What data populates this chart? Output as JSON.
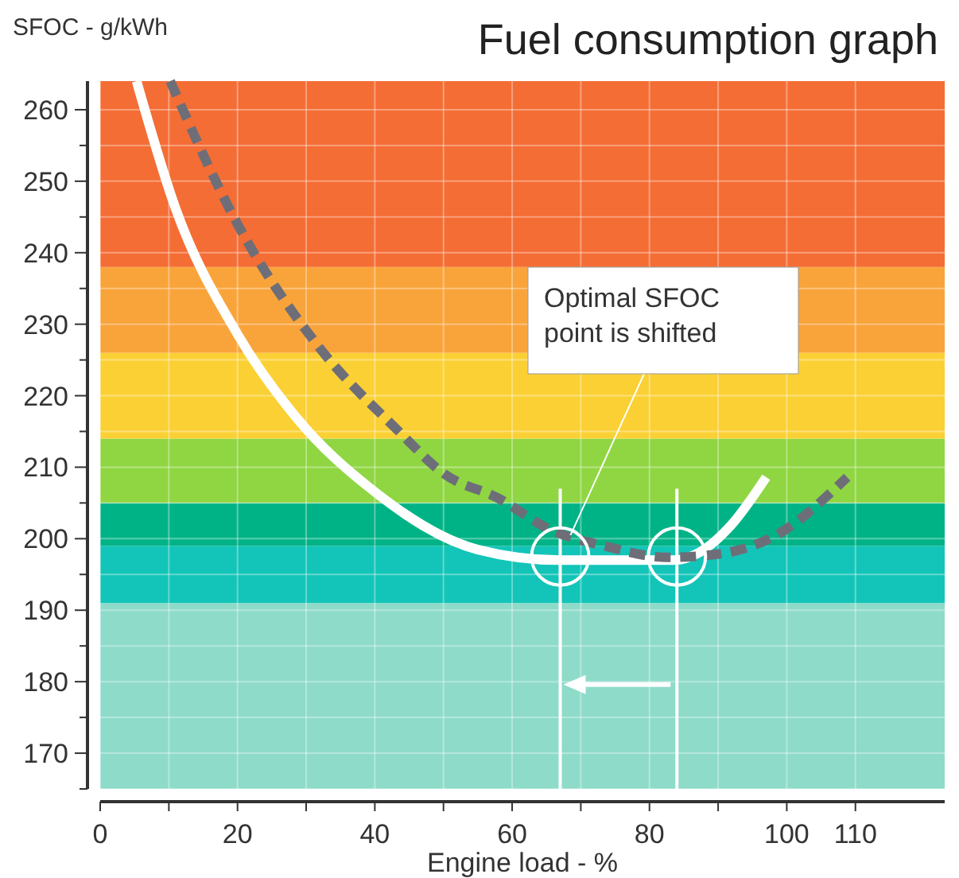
{
  "chart_data": {
    "type": "line",
    "title": "Fuel consumption graph",
    "xlabel": "Engine load - %",
    "ylabel": "SFOC - g/kWh",
    "xlim": [
      0,
      123
    ],
    "ylim": [
      165,
      264
    ],
    "xticks": [
      0,
      {
        "value": 10,
        "label": null
      },
      20,
      {
        "value": 30,
        "label": null
      },
      40,
      {
        "value": 50,
        "label": null
      },
      60,
      {
        "value": 70,
        "label": null
      },
      80,
      {
        "value": 90,
        "label": null
      },
      100,
      110
    ],
    "yticks": [
      {
        "value": 165,
        "label": null
      },
      170,
      {
        "value": 175,
        "label": null
      },
      180,
      {
        "value": 185,
        "label": null
      },
      190,
      {
        "value": 195,
        "label": null
      },
      200,
      {
        "value": 205,
        "label": null
      },
      210,
      {
        "value": 215,
        "label": null
      },
      220,
      {
        "value": 225,
        "label": null
      },
      230,
      {
        "value": 235,
        "label": null
      },
      240,
      {
        "value": 245,
        "label": null
      },
      250,
      {
        "value": 255,
        "label": null
      },
      260
    ],
    "grid": true,
    "bands": [
      {
        "axis": "y",
        "from": 165,
        "to": 191,
        "color": "#8edbc9"
      },
      {
        "axis": "y",
        "from": 191,
        "to": 199,
        "color": "#13c4b8"
      },
      {
        "axis": "y",
        "from": 199,
        "to": 205,
        "color": "#00b386"
      },
      {
        "axis": "y",
        "from": 205,
        "to": 214,
        "color": "#8fd642"
      },
      {
        "axis": "y",
        "from": 214,
        "to": 226,
        "color": "#fbd034"
      },
      {
        "axis": "y",
        "from": 226,
        "to": 238,
        "color": "#f9a43a"
      },
      {
        "axis": "y",
        "from": 238,
        "to": 264,
        "color": "#f46d35"
      }
    ],
    "series": [
      {
        "color": "#ffffff",
        "line_style": "solid",
        "x": [
          5.3,
          10.9,
          20,
          28.7,
          39.4,
          54.9,
          66.9,
          73.4,
          83.6,
          87.3,
          91.9,
          97
        ],
        "values": [
          264,
          246.4,
          228.6,
          216.8,
          207,
          198.5,
          197,
          197,
          197,
          198.1,
          201.9,
          208.6
        ]
      },
      {
        "color": "#6e6e78",
        "line_style": "dashed",
        "x": [
          10.2,
          20,
          31.7,
          43.3,
          50.2,
          57.9,
          65.7,
          73.4,
          82.6,
          90.3,
          98.1,
          108.8
        ],
        "values": [
          264,
          244,
          227,
          215.2,
          209,
          205.7,
          201.2,
          199,
          197.4,
          197.9,
          200.3,
          208.6
        ]
      }
    ],
    "ref_lines": [
      {
        "axis": "x",
        "value": 67,
        "color": "#ffffff"
      },
      {
        "axis": "x",
        "value": 84,
        "color": "#ffffff"
      }
    ],
    "annotations": [
      {
        "text": "Optimal SFOC\npoint is shifted",
        "x": 68.5,
        "y": 200.5
      }
    ]
  }
}
